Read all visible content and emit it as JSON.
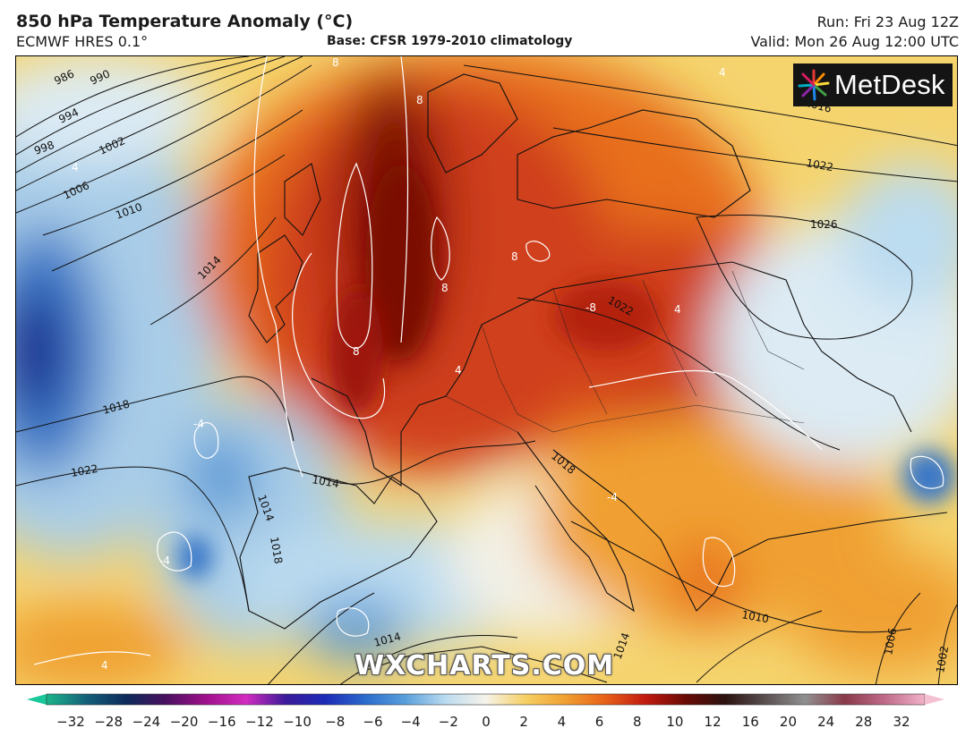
{
  "header": {
    "title": "850 hPa Temperature Anomaly (°C)",
    "model": "ECMWF HRES 0.1°",
    "base": "Base: CFSR 1979-2010 climatology",
    "run": "Run: Fri 23 Aug 12Z",
    "valid": "Valid: Mon 26 Aug 12:00 UTC"
  },
  "logo": {
    "text": "MetDesk",
    "icon": "metdesk-burst-icon"
  },
  "watermark": "WXCHARTS.COM",
  "map": {
    "isobar_labels": [
      "986",
      "990",
      "994",
      "998",
      "1002",
      "1006",
      "1010",
      "1014",
      "1018",
      "1022",
      "1014",
      "1018",
      "1022",
      "1026",
      "1022",
      "1014",
      "1010",
      "1014",
      "1006",
      "1002",
      "1014",
      "1018",
      "1016"
    ],
    "anomaly_labels": [
      "8",
      "8",
      "8",
      "8",
      "8",
      "-8",
      "4",
      "4",
      "4",
      "4",
      "-4",
      "-4",
      "-4",
      "4"
    ],
    "colors": {
      "cold_deep": "#1a2a8c",
      "cold": "#3a78c8",
      "cool": "#a9cde8",
      "neutral": "#f3f1e6",
      "warm": "#f6c64a",
      "hot": "#e8701e",
      "very_hot": "#c8300e",
      "extreme": "#6e0b06"
    }
  },
  "colorbar": {
    "ticks": [
      "−32",
      "−28",
      "−24",
      "−20",
      "−16",
      "−12",
      "−10",
      "−8",
      "−6",
      "−4",
      "−2",
      "0",
      "2",
      "4",
      "6",
      "8",
      "10",
      "12",
      "16",
      "20",
      "24",
      "28",
      "32"
    ],
    "stops": [
      "#1bb58a",
      "#14607a",
      "#0d2a5a",
      "#4a1060",
      "#a0108c",
      "#d22cc0",
      "#3a1a9a",
      "#1c2cb8",
      "#2c6ccc",
      "#5aa0dc",
      "#bcdcf0",
      "#f6f3ea",
      "#f6cf62",
      "#f0a030",
      "#e86018",
      "#c21a10",
      "#6a0a06",
      "#2a1210",
      "#5a5050",
      "#909090",
      "#8a3a4a",
      "#c06a8a",
      "#f2b2c8"
    ]
  }
}
